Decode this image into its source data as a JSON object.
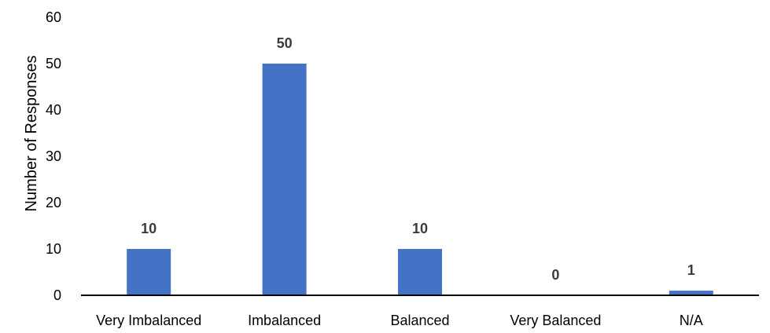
{
  "chart_data": {
    "type": "bar",
    "title": "",
    "xlabel": "",
    "ylabel": "Number of Responses",
    "categories": [
      "Very Imbalanced",
      "Imbalanced",
      "Balanced",
      "Very Balanced",
      "N/A"
    ],
    "values": [
      10,
      50,
      10,
      0,
      1
    ],
    "data_labels": [
      "10",
      "50",
      "10",
      "0",
      "1"
    ],
    "ylim": [
      0,
      60
    ],
    "yticks": [
      0,
      10,
      20,
      30,
      40,
      50,
      60
    ],
    "grid": false,
    "legend": "none",
    "bar_color": "#4472c4",
    "axis_color": "#000000",
    "label_color": "#3b3b3b"
  }
}
